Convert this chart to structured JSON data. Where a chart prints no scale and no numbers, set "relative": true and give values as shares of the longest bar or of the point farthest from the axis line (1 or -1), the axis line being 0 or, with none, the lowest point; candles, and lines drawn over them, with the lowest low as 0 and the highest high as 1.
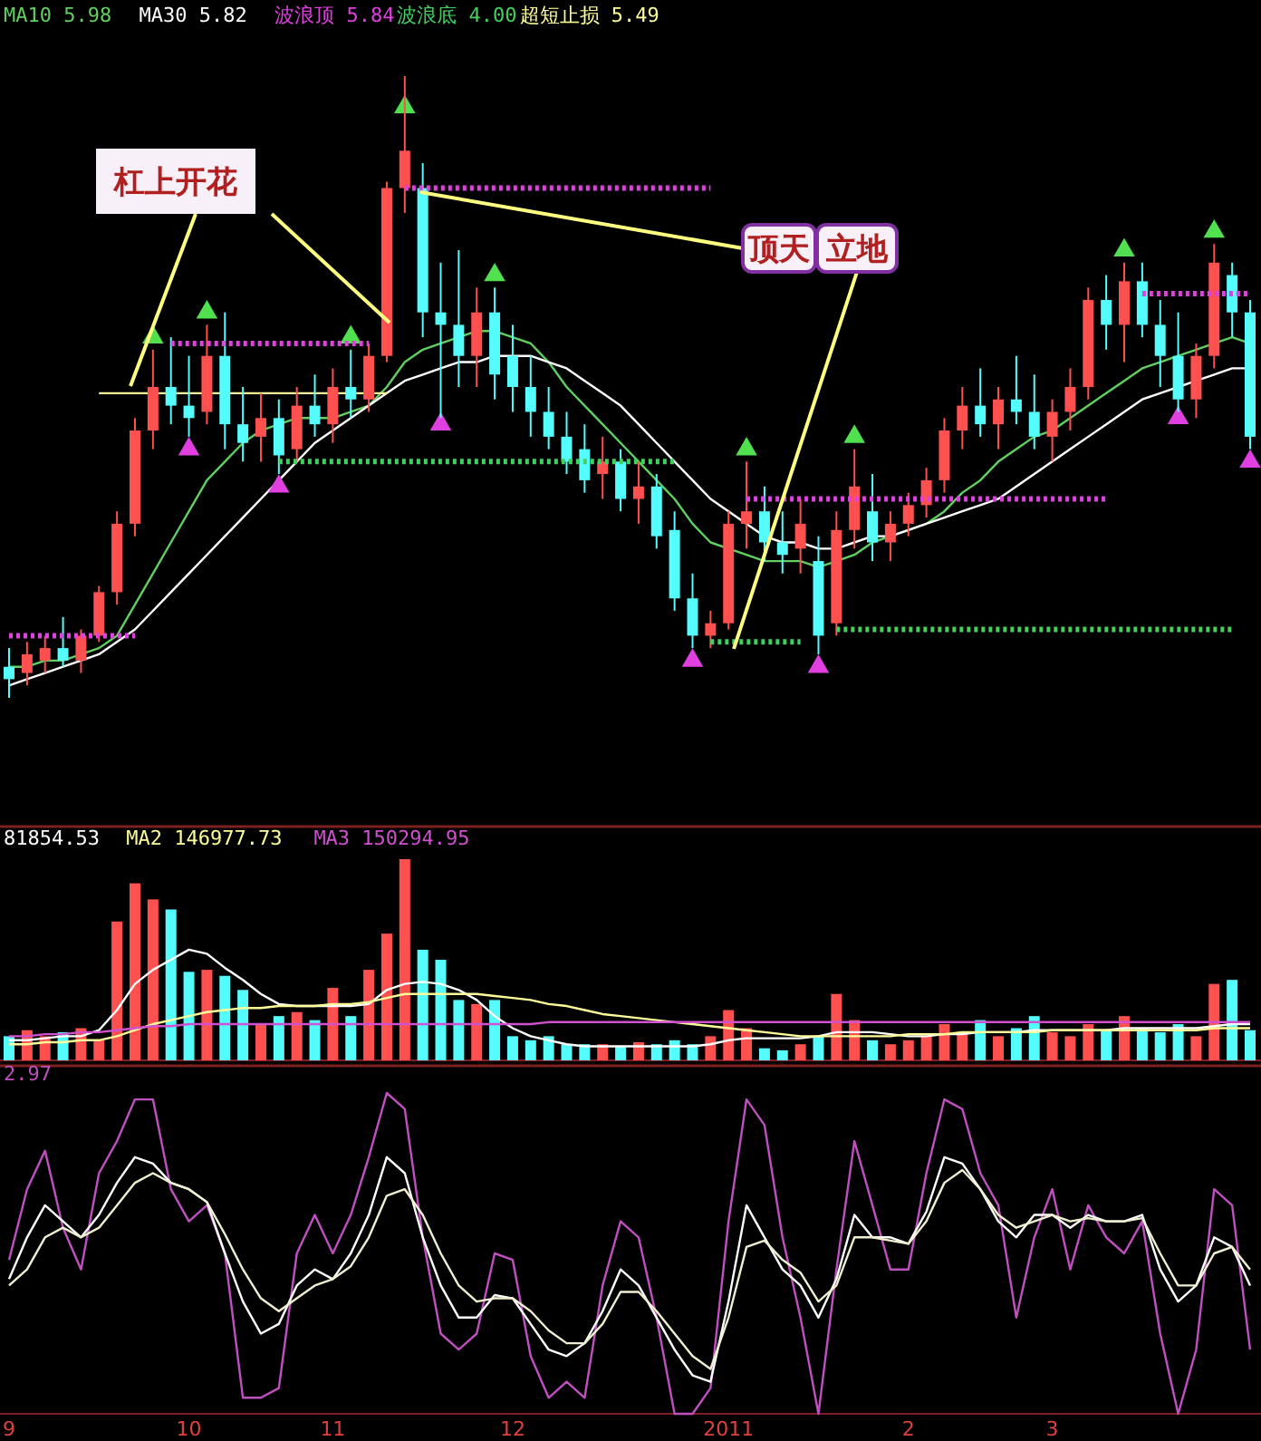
{
  "chart_data": [
    {
      "type": "candlestick",
      "relative": true,
      "tick_labels": false,
      "legend": "top left",
      "annotations": [
        "杠上开花",
        "顶天",
        "立地"
      ],
      "categories": [
        null,
        null,
        null,
        null,
        null,
        null,
        null,
        null,
        null,
        null,
        null,
        null,
        null,
        null,
        null,
        null,
        null,
        null,
        null,
        null,
        null,
        null,
        null,
        null,
        null,
        null,
        null,
        null,
        null,
        null,
        null,
        null,
        null,
        null,
        null,
        null,
        null,
        null,
        null,
        null,
        null,
        null,
        null,
        null,
        null,
        null,
        null,
        null,
        null,
        null,
        null,
        null,
        null,
        null,
        null,
        null,
        null,
        null,
        null,
        null,
        null,
        null,
        null,
        null,
        null,
        null,
        null,
        null,
        null,
        null
      ],
      "ohlc": [
        [
          0.05,
          0.08,
          0.0,
          0.03
        ],
        [
          0.04,
          0.09,
          0.02,
          0.07
        ],
        [
          0.06,
          0.1,
          0.04,
          0.08
        ],
        [
          0.08,
          0.13,
          0.05,
          0.06
        ],
        [
          0.06,
          0.11,
          0.04,
          0.1
        ],
        [
          0.1,
          0.18,
          0.09,
          0.17
        ],
        [
          0.17,
          0.3,
          0.15,
          0.28
        ],
        [
          0.28,
          0.45,
          0.26,
          0.43
        ],
        [
          0.43,
          0.56,
          0.4,
          0.5
        ],
        [
          0.5,
          0.58,
          0.44,
          0.47
        ],
        [
          0.47,
          0.55,
          0.42,
          0.45
        ],
        [
          0.46,
          0.6,
          0.44,
          0.55
        ],
        [
          0.55,
          0.62,
          0.4,
          0.44
        ],
        [
          0.44,
          0.5,
          0.38,
          0.41
        ],
        [
          0.42,
          0.49,
          0.38,
          0.45
        ],
        [
          0.45,
          0.48,
          0.36,
          0.39
        ],
        [
          0.4,
          0.5,
          0.38,
          0.47
        ],
        [
          0.47,
          0.52,
          0.42,
          0.44
        ],
        [
          0.44,
          0.53,
          0.41,
          0.5
        ],
        [
          0.5,
          0.56,
          0.45,
          0.48
        ],
        [
          0.48,
          0.57,
          0.46,
          0.55
        ],
        [
          0.55,
          0.83,
          0.54,
          0.82
        ],
        [
          0.82,
          1.0,
          0.78,
          0.88
        ],
        [
          0.82,
          0.86,
          0.58,
          0.62
        ],
        [
          0.62,
          0.7,
          0.45,
          0.6
        ],
        [
          0.6,
          0.72,
          0.5,
          0.55
        ],
        [
          0.55,
          0.66,
          0.5,
          0.62
        ],
        [
          0.62,
          0.66,
          0.48,
          0.52
        ],
        [
          0.55,
          0.6,
          0.46,
          0.5
        ],
        [
          0.5,
          0.55,
          0.42,
          0.46
        ],
        [
          0.46,
          0.5,
          0.4,
          0.42
        ],
        [
          0.42,
          0.46,
          0.36,
          0.38
        ],
        [
          0.4,
          0.44,
          0.33,
          0.35
        ],
        [
          0.36,
          0.42,
          0.32,
          0.38
        ],
        [
          0.38,
          0.4,
          0.3,
          0.32
        ],
        [
          0.32,
          0.38,
          0.28,
          0.34
        ],
        [
          0.34,
          0.36,
          0.24,
          0.26
        ],
        [
          0.27,
          0.3,
          0.14,
          0.16
        ],
        [
          0.16,
          0.2,
          0.08,
          0.1
        ],
        [
          0.1,
          0.14,
          0.08,
          0.12
        ],
        [
          0.12,
          0.3,
          0.11,
          0.28
        ],
        [
          0.28,
          0.38,
          0.24,
          0.3
        ],
        [
          0.3,
          0.34,
          0.22,
          0.25
        ],
        [
          0.25,
          0.3,
          0.2,
          0.23
        ],
        [
          0.24,
          0.32,
          0.2,
          0.28
        ],
        [
          0.22,
          0.26,
          0.07,
          0.1
        ],
        [
          0.12,
          0.3,
          0.1,
          0.27
        ],
        [
          0.27,
          0.4,
          0.24,
          0.34
        ],
        [
          0.3,
          0.36,
          0.22,
          0.25
        ],
        [
          0.25,
          0.3,
          0.22,
          0.28
        ],
        [
          0.28,
          0.33,
          0.26,
          0.31
        ],
        [
          0.31,
          0.37,
          0.29,
          0.35
        ],
        [
          0.35,
          0.45,
          0.33,
          0.43
        ],
        [
          0.43,
          0.5,
          0.4,
          0.47
        ],
        [
          0.47,
          0.53,
          0.42,
          0.44
        ],
        [
          0.44,
          0.5,
          0.4,
          0.48
        ],
        [
          0.48,
          0.55,
          0.44,
          0.46
        ],
        [
          0.46,
          0.52,
          0.4,
          0.42
        ],
        [
          0.42,
          0.48,
          0.38,
          0.46
        ],
        [
          0.46,
          0.53,
          0.43,
          0.5
        ],
        [
          0.5,
          0.66,
          0.48,
          0.64
        ],
        [
          0.64,
          0.68,
          0.56,
          0.6
        ],
        [
          0.6,
          0.7,
          0.54,
          0.67
        ],
        [
          0.67,
          0.7,
          0.58,
          0.6
        ],
        [
          0.6,
          0.64,
          0.5,
          0.55
        ],
        [
          0.55,
          0.62,
          0.46,
          0.48
        ],
        [
          0.48,
          0.57,
          0.45,
          0.55
        ],
        [
          0.55,
          0.73,
          0.53,
          0.7
        ],
        [
          0.68,
          0.7,
          0.58,
          0.62
        ],
        [
          0.62,
          0.64,
          0.4,
          0.42
        ]
      ],
      "colors": [
        "#54fcfc",
        "#ff5050",
        "#ff5050",
        "#54fcfc",
        "#ff5050",
        "#ff5050",
        "#ff5050",
        "#ff5050",
        "#ff5050",
        "#54fcfc",
        "#54fcfc",
        "#ff5050",
        "#54fcfc",
        "#54fcfc",
        "#ff5050",
        "#54fcfc",
        "#ff5050",
        "#54fcfc",
        "#ff5050",
        "#54fcfc",
        "#ff5050",
        "#ff5050",
        "#ff5050",
        "#54fcfc",
        "#54fcfc",
        "#54fcfc",
        "#ff5050",
        "#54fcfc",
        "#54fcfc",
        "#54fcfc",
        "#54fcfc",
        "#54fcfc",
        "#54fcfc",
        "#ff5050",
        "#54fcfc",
        "#ff5050",
        "#54fcfc",
        "#54fcfc",
        "#54fcfc",
        "#ff5050",
        "#ff5050",
        "#ff5050",
        "#54fcfc",
        "#54fcfc",
        "#ff5050",
        "#54fcfc",
        "#ff5050",
        "#ff5050",
        "#54fcfc",
        "#ff5050",
        "#ff5050",
        "#ff5050",
        "#ff5050",
        "#ff5050",
        "#54fcfc",
        "#ff5050",
        "#54fcfc",
        "#54fcfc",
        "#ff5050",
        "#ff5050",
        "#ff5050",
        "#54fcfc",
        "#ff5050",
        "#54fcfc",
        "#54fcfc",
        "#54fcfc",
        "#ff5050",
        "#ff5050",
        "#54fcfc",
        "#54fcfc"
      ],
      "series": [
        {
          "name": "MA10 5.98",
          "type": "line",
          "color": "#60d060",
          "values": [
            0.05,
            0.05,
            0.06,
            0.06,
            0.07,
            0.08,
            0.1,
            0.15,
            0.2,
            0.25,
            0.3,
            0.35,
            0.38,
            0.41,
            0.43,
            0.44,
            0.45,
            0.45,
            0.45,
            0.46,
            0.47,
            0.5,
            0.54,
            0.56,
            0.57,
            0.58,
            0.59,
            0.59,
            0.58,
            0.57,
            0.54,
            0.5,
            0.47,
            0.44,
            0.41,
            0.38,
            0.35,
            0.32,
            0.28,
            0.25,
            0.24,
            0.23,
            0.22,
            0.22,
            0.22,
            0.21,
            0.22,
            0.23,
            0.25,
            0.26,
            0.27,
            0.28,
            0.3,
            0.33,
            0.35,
            0.38,
            0.4,
            0.42,
            0.43,
            0.45,
            0.47,
            0.49,
            0.51,
            0.53,
            0.54,
            0.55,
            0.56,
            0.57,
            0.58,
            0.57
          ]
        },
        {
          "name": "MA30 5.82",
          "type": "line",
          "color": "#ffffff",
          "values": [
            0.02,
            0.03,
            0.04,
            0.05,
            0.06,
            0.07,
            0.09,
            0.11,
            0.14,
            0.17,
            0.2,
            0.23,
            0.26,
            0.29,
            0.32,
            0.35,
            0.38,
            0.41,
            0.43,
            0.45,
            0.47,
            0.49,
            0.51,
            0.52,
            0.53,
            0.54,
            0.54,
            0.55,
            0.55,
            0.55,
            0.54,
            0.53,
            0.51,
            0.49,
            0.47,
            0.44,
            0.41,
            0.38,
            0.35,
            0.32,
            0.3,
            0.28,
            0.26,
            0.25,
            0.25,
            0.24,
            0.24,
            0.25,
            0.26,
            0.26,
            0.27,
            0.28,
            0.29,
            0.3,
            0.31,
            0.32,
            0.34,
            0.36,
            0.38,
            0.4,
            0.42,
            0.44,
            0.46,
            0.48,
            0.49,
            0.5,
            0.51,
            0.52,
            0.53,
            0.53
          ]
        },
        {
          "name": "波浪顶 5.84",
          "type": "line",
          "line_style": "dotted",
          "color": "#e040e0",
          "values": [
            0.1,
            0.1,
            0.1,
            0.1,
            0.1,
            0.1,
            0.1,
            0.1,
            null,
            0.57,
            0.57,
            0.57,
            0.57,
            0.57,
            0.57,
            0.57,
            0.57,
            0.57,
            0.57,
            0.57,
            0.57,
            null,
            0.82,
            0.82,
            0.82,
            0.82,
            0.82,
            0.82,
            0.82,
            0.82,
            0.82,
            0.82,
            0.82,
            0.82,
            0.82,
            0.82,
            0.82,
            0.82,
            0.82,
            0.82,
            null,
            0.32,
            0.32,
            0.32,
            0.32,
            0.32,
            0.32,
            0.32,
            0.32,
            0.32,
            0.32,
            0.32,
            0.32,
            0.32,
            0.32,
            0.32,
            0.32,
            0.32,
            0.32,
            0.32,
            0.32,
            0.32,
            null,
            0.65,
            0.65,
            0.65,
            0.65,
            0.65,
            0.65,
            0.65
          ]
        },
        {
          "name": "波浪底 4.00",
          "type": "line",
          "line_style": "dotted",
          "color": "#40d060",
          "values": [
            null,
            null,
            null,
            null,
            null,
            null,
            null,
            null,
            null,
            null,
            null,
            null,
            null,
            null,
            null,
            0.38,
            0.38,
            0.38,
            0.38,
            0.38,
            0.38,
            0.38,
            0.38,
            0.38,
            0.38,
            0.38,
            0.38,
            0.38,
            0.38,
            0.38,
            0.38,
            0.38,
            0.38,
            0.38,
            0.38,
            0.38,
            0.38,
            0.38,
            null,
            0.09,
            0.09,
            0.09,
            0.09,
            0.09,
            0.09,
            null,
            0.11,
            0.11,
            0.11,
            0.11,
            0.11,
            0.11,
            0.11,
            0.11,
            0.11,
            0.11,
            0.11,
            0.11,
            0.11,
            0.11,
            0.11,
            0.11,
            0.11,
            0.11,
            0.11,
            0.11,
            0.11,
            0.11,
            0.11,
            null
          ]
        },
        {
          "name": "超短止损 5.49",
          "type": "line",
          "color": "#ffff99",
          "values": [
            null,
            null,
            null,
            null,
            null,
            0.49,
            0.49,
            0.49,
            0.49,
            0.49,
            0.49,
            0.49,
            0.49,
            0.49,
            0.49,
            0.49,
            0.49,
            0.49,
            0.49,
            0.49,
            0.49,
            0.49,
            null,
            null,
            null,
            null,
            null,
            null,
            null,
            null,
            null,
            null,
            null,
            null,
            null,
            null,
            null,
            null,
            null,
            null,
            null,
            null,
            null,
            null,
            null,
            null,
            null,
            null,
            null,
            null,
            null,
            null,
            null,
            null,
            null,
            null,
            null,
            null,
            null,
            null,
            null,
            null,
            null,
            null,
            null,
            null,
            null,
            null,
            null,
            null
          ]
        },
        {
          "type": "scatter",
          "marker": "triangle",
          "color": "#50e050",
          "values": [
            null,
            null,
            null,
            null,
            null,
            null,
            null,
            null,
            0.58,
            null,
            null,
            0.62,
            null,
            null,
            null,
            null,
            null,
            null,
            null,
            0.58,
            null,
            null,
            0.95,
            null,
            null,
            null,
            null,
            0.68,
            null,
            null,
            null,
            null,
            null,
            null,
            null,
            null,
            null,
            null,
            null,
            null,
            null,
            0.4,
            null,
            null,
            null,
            null,
            null,
            0.42,
            null,
            null,
            null,
            null,
            null,
            null,
            null,
            null,
            null,
            null,
            null,
            null,
            null,
            null,
            0.72,
            null,
            null,
            null,
            null,
            0.75,
            null,
            null
          ]
        },
        {
          "type": "scatter",
          "marker": "triangle",
          "color": "#e040e0",
          "values": [
            null,
            null,
            null,
            null,
            null,
            null,
            null,
            null,
            null,
            null,
            0.4,
            null,
            null,
            null,
            null,
            0.34,
            null,
            null,
            null,
            null,
            null,
            null,
            null,
            null,
            0.44,
            null,
            null,
            null,
            null,
            null,
            null,
            null,
            null,
            null,
            null,
            null,
            null,
            null,
            0.06,
            null,
            null,
            null,
            null,
            null,
            null,
            0.05,
            null,
            null,
            null,
            null,
            null,
            null,
            null,
            null,
            null,
            null,
            null,
            null,
            null,
            null,
            null,
            null,
            null,
            null,
            null,
            0.45,
            null,
            null,
            null,
            0.38
          ]
        }
      ]
    },
    {
      "type": "bar",
      "relative": true,
      "tick_labels": false,
      "legend": "top left",
      "categories": [
        null,
        null,
        null,
        null,
        null,
        null,
        null,
        null,
        null,
        null,
        null,
        null,
        null,
        null,
        null,
        null,
        null,
        null,
        null,
        null,
        null,
        null,
        null,
        null,
        null,
        null,
        null,
        null,
        null,
        null,
        null,
        null,
        null,
        null,
        null,
        null,
        null,
        null,
        null,
        null,
        null,
        null,
        null,
        null,
        null,
        null,
        null,
        null,
        null,
        null,
        null,
        null,
        null,
        null,
        null,
        null,
        null,
        null,
        null,
        null,
        null,
        null,
        null,
        null,
        null,
        null,
        null,
        null,
        null,
        null
      ],
      "series": [
        {
          "type": "bar",
          "values": [
            0.12,
            0.15,
            0.12,
            0.14,
            0.16,
            0.1,
            0.69,
            0.88,
            0.8,
            0.75,
            0.44,
            0.45,
            0.42,
            0.35,
            0.18,
            0.22,
            0.24,
            0.2,
            0.36,
            0.22,
            0.45,
            0.63,
            1.0,
            0.55,
            0.5,
            0.3,
            0.28,
            0.3,
            0.12,
            0.1,
            0.12,
            0.08,
            0.08,
            0.08,
            0.07,
            0.09,
            0.08,
            0.1,
            0.08,
            0.12,
            0.25,
            0.16,
            0.06,
            0.05,
            0.08,
            0.12,
            0.33,
            0.2,
            0.1,
            0.08,
            0.1,
            0.12,
            0.18,
            0.14,
            0.2,
            0.12,
            0.16,
            0.22,
            0.14,
            0.12,
            0.18,
            0.15,
            0.22,
            0.16,
            0.14,
            0.18,
            0.12,
            0.38,
            0.4,
            0.15
          ],
          "colors": [
            "#54fcfc",
            "#ff5050",
            "#ff5050",
            "#54fcfc",
            "#ff5050",
            "#ff5050",
            "#ff5050",
            "#ff5050",
            "#ff5050",
            "#54fcfc",
            "#54fcfc",
            "#ff5050",
            "#54fcfc",
            "#54fcfc",
            "#ff5050",
            "#54fcfc",
            "#ff5050",
            "#54fcfc",
            "#ff5050",
            "#54fcfc",
            "#ff5050",
            "#ff5050",
            "#ff5050",
            "#54fcfc",
            "#54fcfc",
            "#54fcfc",
            "#ff5050",
            "#54fcfc",
            "#54fcfc",
            "#54fcfc",
            "#54fcfc",
            "#54fcfc",
            "#54fcfc",
            "#ff5050",
            "#54fcfc",
            "#ff5050",
            "#54fcfc",
            "#54fcfc",
            "#54fcfc",
            "#ff5050",
            "#ff5050",
            "#ff5050",
            "#54fcfc",
            "#54fcfc",
            "#ff5050",
            "#54fcfc",
            "#ff5050",
            "#ff5050",
            "#54fcfc",
            "#ff5050",
            "#ff5050",
            "#ff5050",
            "#ff5050",
            "#ff5050",
            "#54fcfc",
            "#ff5050",
            "#54fcfc",
            "#54fcfc",
            "#ff5050",
            "#ff5050",
            "#ff5050",
            "#54fcfc",
            "#ff5050",
            "#54fcfc",
            "#54fcfc",
            "#54fcfc",
            "#ff5050",
            "#ff5050",
            "#54fcfc",
            "#54fcfc"
          ]
        },
        {
          "name": "81854.53",
          "type": "line",
          "color": "#ffffff",
          "values": [
            0.1,
            0.1,
            0.11,
            0.12,
            0.12,
            0.15,
            0.25,
            0.38,
            0.45,
            0.5,
            0.55,
            0.53,
            0.46,
            0.4,
            0.33,
            0.28,
            0.27,
            0.27,
            0.27,
            0.27,
            0.28,
            0.35,
            0.38,
            0.39,
            0.38,
            0.35,
            0.3,
            0.22,
            0.16,
            0.12,
            0.1,
            0.08,
            0.07,
            0.07,
            0.07,
            0.07,
            0.07,
            0.07,
            0.07,
            0.08,
            0.1,
            0.11,
            0.11,
            0.11,
            0.11,
            0.12,
            0.14,
            0.14,
            0.14,
            0.13,
            0.12,
            0.12,
            0.13,
            0.13,
            0.14,
            0.14,
            0.14,
            0.15,
            0.15,
            0.15,
            0.15,
            0.15,
            0.16,
            0.16,
            0.16,
            0.16,
            0.16,
            0.17,
            0.18,
            0.18
          ]
        },
        {
          "name": "MA2 146977.73",
          "type": "line",
          "color": "#ffff99",
          "values": [
            0.08,
            0.08,
            0.09,
            0.09,
            0.1,
            0.1,
            0.12,
            0.15,
            0.18,
            0.2,
            0.22,
            0.24,
            0.25,
            0.26,
            0.26,
            0.27,
            0.27,
            0.27,
            0.28,
            0.28,
            0.29,
            0.31,
            0.33,
            0.33,
            0.33,
            0.33,
            0.33,
            0.32,
            0.31,
            0.3,
            0.28,
            0.27,
            0.25,
            0.23,
            0.22,
            0.21,
            0.2,
            0.19,
            0.18,
            0.17,
            0.16,
            0.15,
            0.14,
            0.13,
            0.12,
            0.12,
            0.12,
            0.12,
            0.12,
            0.12,
            0.13,
            0.13,
            0.13,
            0.14,
            0.14,
            0.14,
            0.14,
            0.14,
            0.15,
            0.15,
            0.15,
            0.15,
            0.15,
            0.15,
            0.15,
            0.15,
            0.15,
            0.16,
            0.16,
            0.16
          ]
        },
        {
          "name": "MA3 150294.95",
          "type": "line",
          "color": "#d050d0",
          "values": [
            0.12,
            0.12,
            0.13,
            0.13,
            0.14,
            0.14,
            0.15,
            0.16,
            0.17,
            0.17,
            0.18,
            0.18,
            0.18,
            0.18,
            0.18,
            0.18,
            0.18,
            0.18,
            0.18,
            0.18,
            0.18,
            0.18,
            0.18,
            0.18,
            0.18,
            0.18,
            0.18,
            0.18,
            0.18,
            0.18,
            0.19,
            0.19,
            0.19,
            0.19,
            0.19,
            0.19,
            0.19,
            0.19,
            0.19,
            0.19,
            0.19,
            0.19,
            0.19,
            0.19,
            0.19,
            0.19,
            0.19,
            0.19,
            0.19,
            0.19,
            0.19,
            0.19,
            0.19,
            0.19,
            0.19,
            0.19,
            0.19,
            0.19,
            0.19,
            0.19,
            0.19,
            0.19,
            0.19,
            0.19,
            0.19,
            0.19,
            0.19,
            0.19,
            0.19,
            0.19
          ]
        }
      ]
    },
    {
      "type": "line",
      "relative": true,
      "legend": "top left",
      "categories": [
        "9",
        null,
        null,
        null,
        null,
        null,
        null,
        null,
        null,
        null,
        "10",
        null,
        null,
        null,
        null,
        null,
        null,
        null,
        "11",
        null,
        null,
        null,
        null,
        null,
        null,
        null,
        null,
        null,
        "12",
        null,
        null,
        null,
        null,
        null,
        null,
        null,
        null,
        null,
        null,
        null,
        "2011",
        null,
        null,
        null,
        null,
        null,
        null,
        null,
        null,
        null,
        "2",
        null,
        null,
        null,
        null,
        null,
        null,
        null,
        "3",
        null,
        null,
        null,
        null,
        null,
        null,
        null,
        null,
        null,
        null,
        null
      ],
      "tick_labels": "x",
      "series": [
        {
          "name": "2.97",
          "color": "#c050c0",
          "values": [
            0.48,
            0.7,
            0.82,
            0.58,
            0.45,
            0.75,
            0.85,
            0.98,
            0.98,
            0.7,
            0.6,
            0.65,
            0.5,
            0.05,
            0.05,
            0.08,
            0.5,
            0.62,
            0.5,
            0.62,
            0.8,
            1.0,
            0.95,
            0.55,
            0.25,
            0.2,
            0.25,
            0.5,
            0.48,
            0.18,
            0.05,
            0.1,
            0.05,
            0.4,
            0.6,
            0.55,
            0.3,
            0.0,
            0.0,
            0.08,
            0.6,
            0.98,
            0.9,
            0.55,
            0.3,
            0.0,
            0.45,
            0.85,
            0.65,
            0.45,
            0.45,
            0.75,
            0.98,
            0.95,
            0.75,
            0.65,
            0.3,
            0.55,
            0.7,
            0.45,
            0.65,
            0.55,
            0.5,
            0.6,
            0.25,
            0.0,
            0.2,
            0.7,
            0.65,
            0.2
          ]
        },
        {
          "color": "#ffffff",
          "values": [
            0.42,
            0.55,
            0.65,
            0.6,
            0.55,
            0.62,
            0.72,
            0.8,
            0.78,
            0.72,
            0.7,
            0.66,
            0.5,
            0.35,
            0.25,
            0.28,
            0.4,
            0.45,
            0.42,
            0.5,
            0.62,
            0.8,
            0.75,
            0.55,
            0.4,
            0.3,
            0.3,
            0.37,
            0.36,
            0.28,
            0.2,
            0.18,
            0.22,
            0.32,
            0.45,
            0.4,
            0.3,
            0.2,
            0.12,
            0.1,
            0.35,
            0.65,
            0.55,
            0.45,
            0.4,
            0.3,
            0.42,
            0.62,
            0.55,
            0.55,
            0.53,
            0.63,
            0.8,
            0.78,
            0.7,
            0.6,
            0.55,
            0.62,
            0.62,
            0.58,
            0.62,
            0.6,
            0.6,
            0.62,
            0.45,
            0.35,
            0.4,
            0.55,
            0.52,
            0.4
          ]
        },
        {
          "color": "#f0f0d0",
          "values": [
            0.4,
            0.45,
            0.55,
            0.58,
            0.55,
            0.58,
            0.65,
            0.72,
            0.75,
            0.72,
            0.7,
            0.66,
            0.56,
            0.45,
            0.36,
            0.32,
            0.36,
            0.4,
            0.42,
            0.46,
            0.55,
            0.68,
            0.7,
            0.62,
            0.5,
            0.4,
            0.35,
            0.36,
            0.36,
            0.32,
            0.26,
            0.22,
            0.22,
            0.28,
            0.38,
            0.38,
            0.32,
            0.25,
            0.18,
            0.14,
            0.3,
            0.52,
            0.54,
            0.48,
            0.44,
            0.35,
            0.4,
            0.55,
            0.55,
            0.54,
            0.53,
            0.6,
            0.72,
            0.76,
            0.7,
            0.62,
            0.58,
            0.6,
            0.62,
            0.6,
            0.61,
            0.6,
            0.6,
            0.61,
            0.5,
            0.4,
            0.4,
            0.5,
            0.52,
            0.45
          ]
        }
      ]
    }
  ]
}
